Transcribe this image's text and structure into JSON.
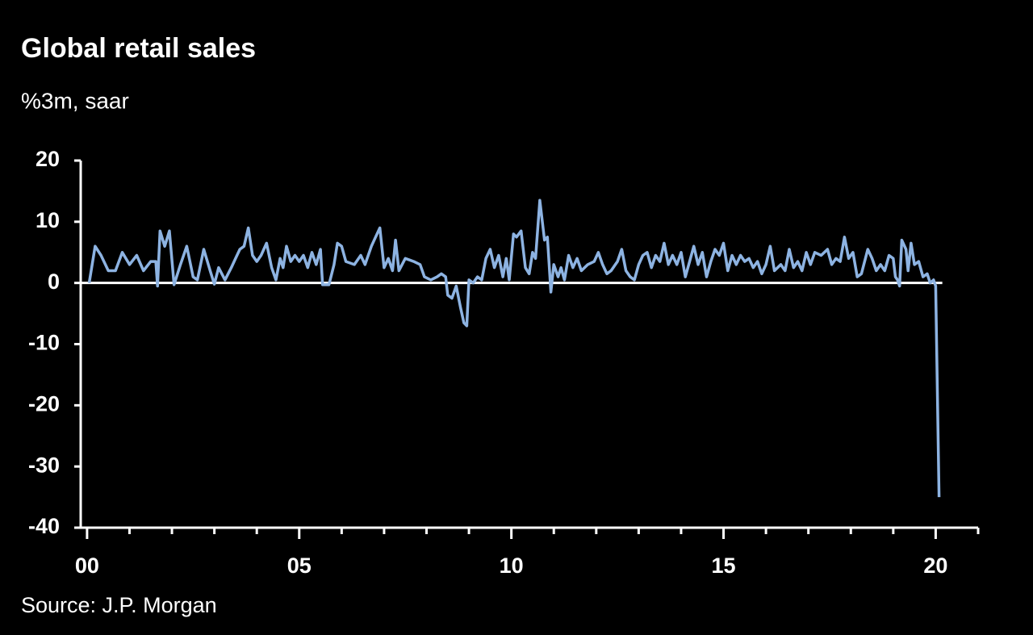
{
  "chart_data": {
    "type": "line",
    "title": "Global retail sales",
    "subtitle": "%3m, saar",
    "source": "Source: J.P. Morgan",
    "color": "#8db3e2",
    "xlim": [
      -0.15,
      21
    ],
    "xticks": [
      {
        "value": 0,
        "label": "00"
      },
      {
        "value": 5,
        "label": "05"
      },
      10,
      15,
      20
    ],
    "xminorticks": [
      1,
      2,
      3,
      4,
      6,
      7,
      8,
      9,
      11,
      12,
      13,
      14,
      16,
      17,
      18,
      19,
      21
    ],
    "ylim": [
      -40,
      20
    ],
    "yticks": [
      20,
      10,
      0,
      -10,
      -20,
      -30,
      -40
    ],
    "x": [
      0.05,
      0.19,
      0.33,
      0.5,
      0.67,
      0.83,
      1.0,
      1.17,
      1.33,
      1.5,
      1.62,
      1.66,
      1.72,
      1.83,
      1.94,
      2.05,
      2.2,
      2.35,
      2.5,
      2.6,
      2.75,
      2.9,
      3.0,
      3.1,
      3.25,
      3.4,
      3.5,
      3.6,
      3.7,
      3.8,
      3.9,
      4.0,
      4.1,
      4.23,
      4.35,
      4.45,
      4.55,
      4.62,
      4.7,
      4.8,
      4.9,
      5.0,
      5.1,
      5.2,
      5.3,
      5.4,
      5.5,
      5.55,
      5.7,
      5.82,
      5.9,
      6.0,
      6.1,
      6.3,
      6.45,
      6.55,
      6.7,
      6.8,
      6.9,
      7.0,
      7.1,
      7.2,
      7.27,
      7.35,
      7.5,
      7.7,
      7.85,
      7.95,
      8.1,
      8.25,
      8.35,
      8.45,
      8.5,
      8.6,
      8.7,
      8.8,
      8.88,
      8.95,
      9.0,
      9.1,
      9.2,
      9.3,
      9.4,
      9.5,
      9.6,
      9.7,
      9.8,
      9.88,
      9.95,
      10.05,
      10.12,
      10.23,
      10.33,
      10.42,
      10.5,
      10.57,
      10.67,
      10.78,
      10.85,
      10.93,
      11.0,
      11.1,
      11.17,
      11.25,
      11.35,
      11.45,
      11.55,
      11.65,
      11.8,
      11.95,
      12.05,
      12.15,
      12.25,
      12.35,
      12.5,
      12.6,
      12.7,
      12.8,
      12.9,
      13.0,
      13.1,
      13.2,
      13.3,
      13.4,
      13.5,
      13.6,
      13.7,
      13.8,
      13.9,
      14.0,
      14.1,
      14.2,
      14.3,
      14.4,
      14.5,
      14.6,
      14.7,
      14.8,
      14.9,
      15.0,
      15.1,
      15.2,
      15.3,
      15.4,
      15.5,
      15.6,
      15.7,
      15.8,
      15.9,
      16.0,
      16.1,
      16.2,
      16.35,
      16.45,
      16.55,
      16.65,
      16.75,
      16.85,
      16.95,
      17.05,
      17.15,
      17.3,
      17.45,
      17.55,
      17.65,
      17.75,
      17.85,
      17.95,
      18.05,
      18.15,
      18.25,
      18.4,
      18.5,
      18.6,
      18.7,
      18.8,
      18.9,
      19.0,
      19.05,
      19.1,
      19.15,
      19.2,
      19.3,
      19.35,
      19.42,
      19.5,
      19.6,
      19.7,
      19.8,
      19.87,
      19.95,
      20.0,
      20.08
    ],
    "values": [
      0,
      6,
      4.5,
      2,
      2,
      5,
      3,
      4.5,
      2,
      3.5,
      3.5,
      -0.5,
      8.5,
      6,
      8.5,
      -0.3,
      3,
      6,
      1,
      0.5,
      5.5,
      2,
      -0.2,
      2.5,
      0.5,
      2.5,
      4,
      5.5,
      6,
      9,
      4.5,
      3.5,
      4.5,
      6.5,
      2.5,
      0.5,
      4,
      2.5,
      6,
      3.5,
      4.5,
      3.5,
      4.5,
      2.5,
      5,
      3,
      5.5,
      -0.3,
      -0.3,
      3,
      6.5,
      6,
      3.5,
      3,
      4.5,
      3,
      6,
      7.5,
      9,
      2.5,
      4,
      2,
      7,
      2,
      4,
      3.5,
      3,
      1,
      0.5,
      1,
      1.5,
      1,
      -2,
      -2.5,
      -0.5,
      -4,
      -6.5,
      -7,
      0.5,
      0,
      1,
      0.5,
      4,
      5.5,
      2.5,
      4.5,
      1,
      4,
      0.5,
      8,
      7.5,
      8.5,
      2.5,
      1.5,
      5,
      4,
      13.5,
      7,
      7.5,
      -1.5,
      3,
      1,
      2.5,
      0.5,
      4.5,
      2.5,
      4,
      2,
      3,
      3.5,
      5,
      3,
      1.5,
      2,
      3.5,
      5.5,
      2,
      1,
      0.5,
      3,
      4.5,
      5,
      2.5,
      4.5,
      3.5,
      6.5,
      3,
      4.5,
      3,
      5,
      1,
      3.5,
      6,
      3,
      5,
      1,
      3.5,
      5.5,
      4.5,
      6.5,
      2,
      4.5,
      3,
      4.5,
      3.5,
      4,
      2.5,
      3.5,
      1.5,
      3,
      6,
      2,
      3,
      2,
      5.5,
      2.5,
      3.5,
      2,
      5,
      3,
      5,
      4.5,
      5.5,
      3,
      4,
      3.5,
      7.5,
      4,
      5,
      1,
      1.5,
      5.5,
      4,
      2,
      3,
      2,
      4.5,
      4,
      1,
      0.5,
      -0.5,
      7,
      5.5,
      2,
      6.5,
      3,
      3.5,
      1,
      1.5,
      0,
      0.5,
      -0.5,
      -35
    ]
  }
}
